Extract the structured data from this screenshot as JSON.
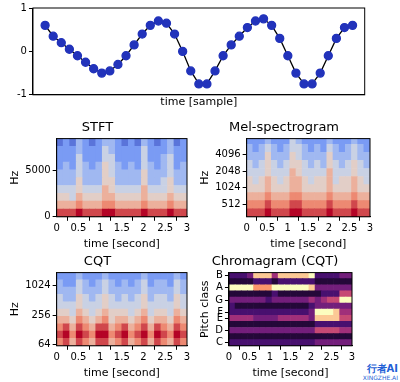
{
  "chart_data": [
    {
      "type": "line",
      "xlabel": "time [sample]",
      "x": [
        0,
        1,
        2,
        3,
        4,
        5,
        6,
        7,
        8,
        9,
        10,
        11,
        12,
        13,
        14,
        15,
        16,
        17,
        18,
        19,
        20,
        21,
        22,
        23,
        24,
        25,
        26,
        27,
        28,
        29,
        30,
        31,
        32,
        33,
        34,
        35,
        36,
        37,
        38
      ],
      "values": [
        0.6,
        0.35,
        0.2,
        0.05,
        -0.1,
        -0.25,
        -0.4,
        -0.5,
        -0.45,
        -0.3,
        -0.1,
        0.15,
        0.4,
        0.6,
        0.7,
        0.65,
        0.4,
        0,
        -0.45,
        -0.75,
        -0.75,
        -0.45,
        -0.1,
        0.15,
        0.35,
        0.55,
        0.7,
        0.75,
        0.6,
        0.3,
        -0.1,
        -0.5,
        -0.75,
        -0.75,
        -0.5,
        -0.1,
        0.3,
        0.55,
        0.6
      ],
      "xlim": [
        -1.5,
        39.5
      ],
      "ylim": [
        -1,
        1
      ],
      "yticks": [
        -1,
        0,
        1
      ],
      "tick_labels": "y",
      "marker": "circle",
      "line_style": "solid",
      "color": "#2233bb",
      "grid": false
    },
    {
      "type": "heatmap",
      "title": "STFT",
      "xlabel": "time [second]",
      "ylabel": "Hz",
      "xlim": [
        0,
        3
      ],
      "xticks": [
        0,
        0.5,
        1,
        1.5,
        2,
        2.5,
        3
      ],
      "ylim": [
        0,
        8400
      ],
      "yticks": [
        0,
        5000
      ],
      "grid": false,
      "x_edges": [
        0,
        0.15,
        0.3,
        0.45,
        0.6,
        0.75,
        0.9,
        1.05,
        1.2,
        1.35,
        1.5,
        1.65,
        1.8,
        1.95,
        2.1,
        2.25,
        2.4,
        2.55,
        2.7,
        2.85,
        3
      ],
      "y_edges": [
        0,
        840,
        1680,
        2520,
        3360,
        4200,
        5040,
        5880,
        6720,
        7560,
        8400
      ],
      "clim": [
        0,
        9
      ],
      "cells": [
        [
          8,
          8,
          8,
          9,
          8,
          8,
          8,
          9,
          9,
          8,
          8,
          8,
          8,
          9,
          8,
          8,
          8,
          9,
          8,
          8
        ],
        [
          6,
          6,
          6,
          7,
          6,
          6,
          6,
          7,
          7,
          6,
          6,
          6,
          6,
          7,
          6,
          6,
          6,
          7,
          6,
          6
        ],
        [
          5,
          5,
          4,
          6,
          5,
          5,
          5,
          6,
          6,
          5,
          5,
          5,
          5,
          6,
          5,
          5,
          5,
          6,
          5,
          5
        ],
        [
          4,
          4,
          4,
          5,
          4,
          4,
          4,
          6,
          5,
          4,
          4,
          4,
          4,
          6,
          4,
          4,
          4,
          5,
          4,
          4
        ],
        [
          3,
          3,
          3,
          5,
          3,
          3,
          3,
          5,
          5,
          3,
          3,
          3,
          3,
          5,
          3,
          3,
          4,
          5,
          3,
          3
        ],
        [
          3,
          3,
          3,
          4,
          3,
          3,
          3,
          5,
          4,
          3,
          3,
          3,
          3,
          5,
          3,
          3,
          3,
          4,
          3,
          3
        ],
        [
          2,
          3,
          2,
          4,
          3,
          2,
          3,
          5,
          4,
          3,
          2,
          3,
          2,
          4,
          3,
          2,
          3,
          4,
          2,
          3
        ],
        [
          2,
          2,
          2,
          4,
          2,
          2,
          2,
          4,
          4,
          2,
          2,
          2,
          2,
          4,
          2,
          2,
          3,
          4,
          2,
          2
        ],
        [
          2,
          2,
          2,
          3,
          2,
          2,
          2,
          4,
          3,
          2,
          2,
          2,
          2,
          4,
          2,
          2,
          2,
          3,
          2,
          2
        ],
        [
          1,
          2,
          1,
          3,
          2,
          1,
          2,
          3,
          3,
          2,
          1,
          2,
          1,
          3,
          2,
          1,
          2,
          3,
          1,
          2
        ]
      ]
    },
    {
      "type": "heatmap",
      "title": "Mel-spectrogram",
      "xlabel": "time [second]",
      "ylabel": "Hz",
      "log": "y",
      "xlim": [
        0,
        3
      ],
      "xticks": [
        0,
        0.5,
        1,
        1.5,
        2,
        2.5,
        3
      ],
      "ylim": [
        300,
        8000
      ],
      "yticks": [
        512,
        1024,
        2048,
        4096
      ],
      "grid": false,
      "x_edges": [
        0,
        0.15,
        0.3,
        0.45,
        0.6,
        0.75,
        0.9,
        1.05,
        1.2,
        1.35,
        1.5,
        1.65,
        1.8,
        1.95,
        2.1,
        2.25,
        2.4,
        2.55,
        2.7,
        2.85,
        3
      ],
      "y_edges": [
        300,
        420,
        590,
        830,
        1160,
        1630,
        2280,
        3200,
        4480,
        6270,
        8000
      ],
      "clim": [
        0,
        9
      ],
      "cells": [
        [
          8,
          8,
          8,
          9,
          8,
          8,
          8,
          9,
          9,
          8,
          8,
          8,
          8,
          9,
          8,
          8,
          8,
          9,
          8,
          8
        ],
        [
          7,
          7,
          7,
          8,
          7,
          7,
          7,
          8,
          8,
          7,
          7,
          7,
          7,
          8,
          7,
          7,
          7,
          8,
          7,
          7
        ],
        [
          6,
          6,
          6,
          7,
          6,
          6,
          6,
          7,
          7,
          6,
          6,
          6,
          6,
          7,
          6,
          6,
          6,
          7,
          6,
          6
        ],
        [
          5,
          5,
          5,
          6,
          5,
          5,
          5,
          6,
          6,
          5,
          5,
          5,
          5,
          6,
          5,
          5,
          5,
          6,
          5,
          5
        ],
        [
          5,
          4,
          5,
          6,
          5,
          4,
          5,
          6,
          6,
          5,
          4,
          5,
          5,
          6,
          4,
          5,
          5,
          6,
          5,
          4
        ],
        [
          4,
          4,
          4,
          5,
          4,
          4,
          4,
          6,
          5,
          4,
          4,
          4,
          4,
          6,
          4,
          4,
          4,
          5,
          4,
          4
        ],
        [
          4,
          3,
          4,
          5,
          4,
          3,
          4,
          5,
          5,
          4,
          3,
          4,
          3,
          5,
          4,
          3,
          4,
          5,
          4,
          3
        ],
        [
          3,
          3,
          3,
          5,
          3,
          3,
          3,
          5,
          4,
          3,
          3,
          3,
          3,
          5,
          3,
          3,
          3,
          4,
          3,
          3
        ],
        [
          3,
          2,
          3,
          4,
          3,
          2,
          3,
          4,
          4,
          3,
          2,
          3,
          2,
          4,
          3,
          2,
          3,
          4,
          3,
          2
        ],
        [
          2,
          2,
          2,
          3,
          2,
          2,
          2,
          4,
          3,
          2,
          2,
          2,
          2,
          3,
          2,
          2,
          2,
          3,
          2,
          2
        ]
      ]
    },
    {
      "type": "heatmap",
      "title": "CQT",
      "xlabel": "time [second]",
      "ylabel": "Hz",
      "log": "y",
      "xlim": [
        0,
        3
      ],
      "xticks": [
        0,
        0.5,
        1,
        1.5,
        2,
        2.5,
        3
      ],
      "ylim": [
        60,
        1900
      ],
      "yticks": [
        64,
        256,
        1024
      ],
      "grid": false,
      "x_edges": [
        0,
        0.15,
        0.3,
        0.45,
        0.6,
        0.75,
        0.9,
        1.05,
        1.2,
        1.35,
        1.5,
        1.65,
        1.8,
        1.95,
        2.1,
        2.25,
        2.4,
        2.55,
        2.7,
        2.85,
        3
      ],
      "y_edges": [
        60,
        85,
        120,
        170,
        240,
        340,
        480,
        680,
        960,
        1350,
        1900
      ],
      "clim": [
        0,
        9
      ],
      "cells": [
        [
          7,
          8,
          6,
          8,
          7,
          6,
          8,
          8,
          6,
          7,
          8,
          6,
          7,
          8,
          6,
          8,
          7,
          6,
          8,
          7
        ],
        [
          8,
          9,
          7,
          9,
          8,
          7,
          9,
          9,
          7,
          8,
          9,
          7,
          8,
          9,
          7,
          9,
          8,
          7,
          9,
          8
        ],
        [
          7,
          8,
          6,
          8,
          7,
          6,
          8,
          8,
          6,
          7,
          8,
          6,
          7,
          8,
          6,
          8,
          7,
          6,
          8,
          7
        ],
        [
          6,
          6,
          5,
          7,
          6,
          5,
          6,
          7,
          5,
          6,
          6,
          5,
          6,
          7,
          5,
          6,
          6,
          5,
          7,
          6
        ],
        [
          5,
          5,
          4,
          6,
          5,
          4,
          5,
          6,
          5,
          5,
          5,
          4,
          5,
          6,
          4,
          5,
          5,
          4,
          6,
          5
        ],
        [
          4,
          4,
          4,
          5,
          4,
          4,
          4,
          5,
          4,
          4,
          4,
          4,
          4,
          5,
          4,
          4,
          4,
          4,
          5,
          4
        ],
        [
          4,
          3,
          3,
          5,
          4,
          3,
          4,
          5,
          4,
          3,
          4,
          3,
          4,
          5,
          3,
          4,
          4,
          3,
          5,
          4
        ],
        [
          3,
          3,
          3,
          4,
          3,
          3,
          3,
          4,
          3,
          3,
          3,
          3,
          3,
          4,
          3,
          3,
          3,
          3,
          4,
          3
        ],
        [
          3,
          2,
          2,
          4,
          3,
          2,
          3,
          4,
          3,
          2,
          3,
          2,
          3,
          4,
          2,
          3,
          3,
          2,
          4,
          3
        ],
        [
          2,
          2,
          2,
          3,
          2,
          2,
          2,
          3,
          2,
          2,
          2,
          2,
          2,
          3,
          2,
          2,
          2,
          2,
          3,
          2
        ]
      ]
    },
    {
      "type": "heatmap",
      "title": "Chromagram (CQT)",
      "xlabel": "time [second]",
      "ylabel": "Pitch class",
      "xlim": [
        0,
        3
      ],
      "xticks": [
        0,
        0.5,
        1,
        1.5,
        2,
        2.5,
        3
      ],
      "ylim": [
        -0.5,
        11.5
      ],
      "yticks": [
        {
          "value": 0,
          "label": "C"
        },
        {
          "value": 2,
          "label": "D"
        },
        {
          "value": 4,
          "label": "E"
        },
        {
          "value": 5,
          "label": "F"
        },
        {
          "value": 7,
          "label": "G"
        },
        {
          "value": 9,
          "label": "A"
        },
        {
          "value": 11,
          "label": "B"
        }
      ],
      "grid": false,
      "x_edges": [
        0,
        0.15,
        0.3,
        0.45,
        0.6,
        0.75,
        0.9,
        1.05,
        1.2,
        1.35,
        1.5,
        1.65,
        1.8,
        1.95,
        2.1,
        2.25,
        2.4,
        2.55,
        2.7,
        2.85,
        3
      ],
      "y_edges": [
        -0.5,
        0.5,
        1.5,
        2.5,
        3.5,
        4.5,
        5.5,
        6.5,
        7.5,
        8.5,
        9.5,
        10.5,
        11.5
      ],
      "clim": [
        0,
        9
      ],
      "cells": [
        [
          2,
          2,
          2,
          2,
          2,
          2,
          2,
          2,
          2,
          2,
          2,
          2,
          2,
          2,
          3,
          3,
          3,
          3,
          3,
          3
        ],
        [
          1,
          1,
          1,
          1,
          1,
          1,
          1,
          1,
          1,
          1,
          1,
          1,
          1,
          1,
          1,
          1,
          1,
          1,
          1,
          1
        ],
        [
          3,
          3,
          3,
          3,
          3,
          3,
          3,
          3,
          3,
          3,
          3,
          3,
          3,
          3,
          5,
          5,
          5,
          5,
          4,
          4
        ],
        [
          1,
          1,
          1,
          1,
          1,
          1,
          1,
          1,
          1,
          1,
          1,
          1,
          1,
          1,
          2,
          2,
          2,
          2,
          2,
          2
        ],
        [
          4,
          4,
          4,
          4,
          3,
          3,
          3,
          3,
          4,
          4,
          4,
          4,
          4,
          3,
          8,
          8,
          8,
          8,
          5,
          5
        ],
        [
          2,
          2,
          2,
          2,
          2,
          2,
          2,
          2,
          2,
          2,
          2,
          2,
          2,
          3,
          9,
          9,
          9,
          8,
          4,
          4
        ],
        [
          2,
          1,
          1,
          1,
          1,
          1,
          1,
          1,
          1,
          1,
          1,
          1,
          1,
          2,
          3,
          3,
          3,
          3,
          3,
          3
        ],
        [
          3,
          3,
          3,
          3,
          3,
          3,
          2,
          3,
          3,
          3,
          3,
          3,
          3,
          4,
          3,
          4,
          5,
          5,
          9,
          9
        ],
        [
          1,
          1,
          1,
          1,
          1,
          1,
          1,
          2,
          1,
          1,
          1,
          1,
          1,
          1,
          1,
          2,
          2,
          2,
          5,
          5
        ],
        [
          9,
          9,
          9,
          9,
          7,
          7,
          7,
          9,
          9,
          9,
          9,
          9,
          9,
          8,
          3,
          3,
          3,
          3,
          3,
          3
        ],
        [
          1,
          1,
          1,
          1,
          2,
          2,
          2,
          1,
          2,
          2,
          2,
          2,
          2,
          2,
          1,
          1,
          1,
          1,
          1,
          1
        ],
        [
          2,
          2,
          2,
          3,
          8,
          8,
          8,
          4,
          8,
          8,
          8,
          8,
          8,
          9,
          2,
          2,
          2,
          2,
          3,
          3
        ]
      ]
    }
  ],
  "watermark": {
    "text": "行者AI",
    "subtext": "XINGZHE.AI"
  }
}
